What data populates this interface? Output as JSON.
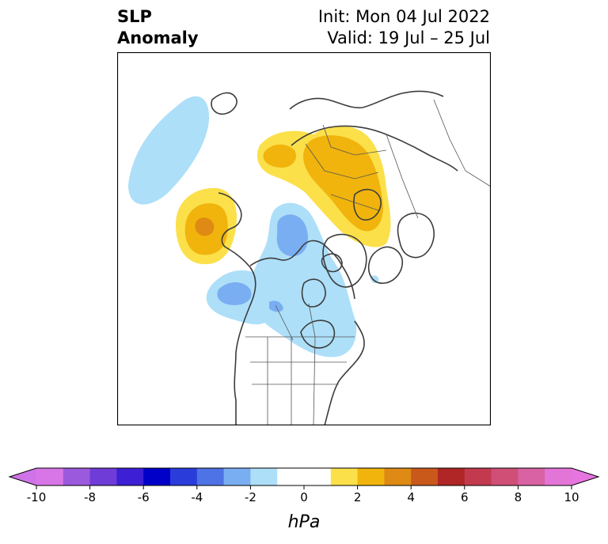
{
  "header": {
    "title_line1": "SLP",
    "title_line2": "Anomaly",
    "init": "Init: Mon 04 Jul 2022",
    "valid": "Valid: 19 Jul – 25 Jul"
  },
  "map": {
    "projection": "north-polar-stereographic",
    "field": "sea level pressure anomaly",
    "features": [
      {
        "name": "positive-anomaly-northern-russia",
        "level": "+2 to +4 hPa",
        "peak": 3
      },
      {
        "name": "positive-anomaly-north-pacific",
        "level": "+2 to +4 hPa",
        "peak": 4
      },
      {
        "name": "negative-anomaly-gulf-of-alaska",
        "level": "-2 to -4 hPa",
        "peak": -3
      },
      {
        "name": "negative-anomaly-canada-arctic",
        "level": "-2 to -4 hPa",
        "peak": -3
      },
      {
        "name": "negative-anomaly-northwest-pacific",
        "level": "-1 to -2 hPa",
        "peak": -2
      }
    ]
  },
  "colorbar": {
    "unit": "hPa",
    "extend": "both",
    "min_color": "#d073e8",
    "max_color": "#e775e0",
    "bins": [
      {
        "lo": -10,
        "hi": -9,
        "color": "#d876e8"
      },
      {
        "lo": -9,
        "hi": -8,
        "color": "#9b59dd"
      },
      {
        "lo": -8,
        "hi": -7,
        "color": "#6f3cd8"
      },
      {
        "lo": -7,
        "hi": -6,
        "color": "#3d1fd5"
      },
      {
        "lo": -6,
        "hi": -5,
        "color": "#0000c8"
      },
      {
        "lo": -5,
        "hi": -4,
        "color": "#2a3ddb"
      },
      {
        "lo": -4,
        "hi": -3,
        "color": "#4e73e6"
      },
      {
        "lo": -3,
        "hi": -2,
        "color": "#7aaef2"
      },
      {
        "lo": -2,
        "hi": -1,
        "color": "#addff9"
      },
      {
        "lo": -1,
        "hi": 1,
        "color": "#ffffff"
      },
      {
        "lo": 1,
        "hi": 2,
        "color": "#fbe04a"
      },
      {
        "lo": 2,
        "hi": 3,
        "color": "#f1b40c"
      },
      {
        "lo": 3,
        "hi": 4,
        "color": "#de8a14"
      },
      {
        "lo": 4,
        "hi": 5,
        "color": "#c9581b"
      },
      {
        "lo": 5,
        "hi": 6,
        "color": "#b02525"
      },
      {
        "lo": 6,
        "hi": 7,
        "color": "#c33a4f"
      },
      {
        "lo": 7,
        "hi": 8,
        "color": "#cf4f77"
      },
      {
        "lo": 8,
        "hi": 9,
        "color": "#d862a3"
      },
      {
        "lo": 9,
        "hi": 10,
        "color": "#e475d8"
      }
    ],
    "ticks": [
      "-10",
      "-8",
      "-6",
      "-4",
      "-2",
      "0",
      "2",
      "4",
      "6",
      "8",
      "10"
    ]
  }
}
